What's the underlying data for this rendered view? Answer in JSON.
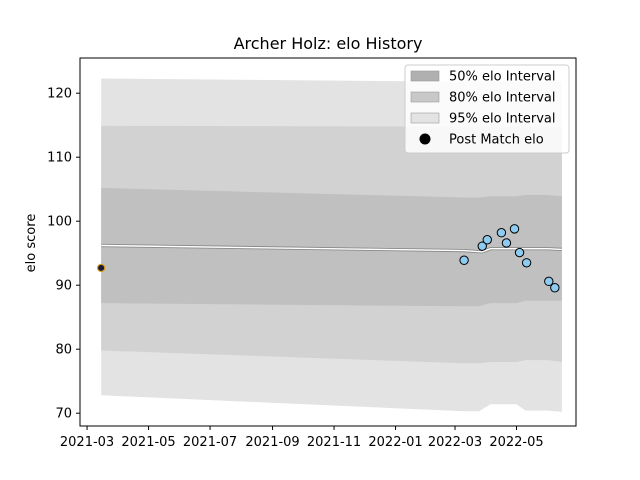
{
  "chart_data": {
    "type": "line",
    "title": "Archer Holz: elo History",
    "xlabel": "",
    "ylabel": "elo score",
    "x_tick_labels": [
      "2021-03",
      "2021-05",
      "2021-07",
      "2021-09",
      "2021-11",
      "2022-01",
      "2022-03",
      "2022-05"
    ],
    "x_ticks": [
      "2021-03-01",
      "2021-05-01",
      "2021-07-01",
      "2021-09-01",
      "2021-11-01",
      "2022-01-01",
      "2022-03-01",
      "2022-05-01"
    ],
    "y_ticks": [
      70,
      80,
      90,
      100,
      110,
      120
    ],
    "xlim": [
      "2021-02-22",
      "2022-06-29"
    ],
    "ylim": [
      68,
      125.5
    ],
    "grid": false,
    "legend_position": "top-right",
    "legend": [
      {
        "label": "50% elo Interval",
        "color": "#b0b0b0",
        "kind": "patch"
      },
      {
        "label": "80% elo Interval",
        "color": "#c8c8c8",
        "kind": "patch"
      },
      {
        "label": "95% elo Interval",
        "color": "#e3e3e3",
        "kind": "patch"
      },
      {
        "label": "Post Match elo",
        "color": "#000000",
        "kind": "marker"
      }
    ],
    "mean_line": {
      "x": [
        "2021-03-15",
        "2022-03-10",
        "2022-03-28",
        "2022-04-05",
        "2022-04-20",
        "2022-05-01",
        "2022-05-10",
        "2022-05-20",
        "2022-06-01",
        "2022-06-15"
      ],
      "y": [
        96.2,
        95.4,
        95.2,
        95.7,
        95.7,
        95.7,
        95.7,
        95.7,
        95.7,
        95.6
      ]
    },
    "bands": [
      {
        "name": "95% elo Interval",
        "color": "#e3e3e3",
        "x": [
          "2021-03-15",
          "2022-03-10",
          "2022-03-25",
          "2022-04-05",
          "2022-04-15",
          "2022-05-01",
          "2022-05-10",
          "2022-05-20",
          "2022-06-01",
          "2022-06-15"
        ],
        "upper": [
          122.3,
          121.8,
          121.8,
          121.8,
          121.8,
          121.8,
          121.8,
          121.8,
          121.8,
          121.8
        ],
        "lower": [
          72.8,
          70.3,
          70.3,
          71.4,
          71.4,
          71.4,
          70.4,
          70.4,
          70.4,
          70.2
        ]
      },
      {
        "name": "80% elo Interval",
        "color": "#d2d2d2",
        "x": [
          "2021-03-15",
          "2022-03-10",
          "2022-03-25",
          "2022-04-05",
          "2022-04-15",
          "2022-05-01",
          "2022-05-10",
          "2022-05-20",
          "2022-06-01",
          "2022-06-15"
        ],
        "upper": [
          114.9,
          114.8,
          114.8,
          114.8,
          114.8,
          114.8,
          114.8,
          114.8,
          114.8,
          114.8
        ],
        "lower": [
          79.8,
          77.8,
          77.8,
          78.0,
          78.0,
          78.0,
          78.3,
          78.3,
          78.3,
          78.0
        ]
      },
      {
        "name": "50% elo Interval",
        "color": "#c0c0c0",
        "x": [
          "2021-03-15",
          "2022-03-10",
          "2022-03-25",
          "2022-04-05",
          "2022-04-15",
          "2022-05-01",
          "2022-05-10",
          "2022-05-20",
          "2022-06-01",
          "2022-06-15"
        ],
        "upper": [
          105.2,
          103.7,
          103.7,
          103.9,
          103.9,
          103.9,
          104.1,
          104.1,
          104.1,
          103.9
        ],
        "lower": [
          87.2,
          86.7,
          86.7,
          87.2,
          87.2,
          87.2,
          87.6,
          87.6,
          87.6,
          87.6
        ]
      }
    ],
    "initial_point": {
      "x": "2021-03-15",
      "y": 92.7,
      "fill": "#1a1a40",
      "edge": "#d4a017"
    },
    "post_match_elo": {
      "fill": "#8ecbf0",
      "edge": "#000000",
      "x": [
        "2022-03-10",
        "2022-03-28",
        "2022-04-02",
        "2022-04-16",
        "2022-04-21",
        "2022-04-29",
        "2022-05-04",
        "2022-05-11",
        "2022-06-02",
        "2022-06-08"
      ],
      "y": [
        93.9,
        96.1,
        97.1,
        98.2,
        96.6,
        98.8,
        95.1,
        93.5,
        90.6,
        89.6
      ]
    }
  }
}
